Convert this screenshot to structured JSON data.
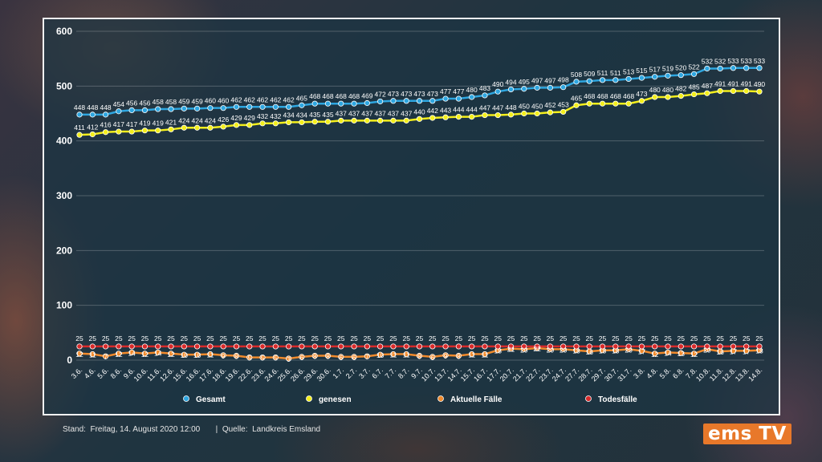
{
  "chart_data": {
    "type": "line",
    "ylim": [
      0,
      600
    ],
    "yticks": [
      0,
      100,
      200,
      300,
      400,
      500,
      600
    ],
    "grid": true,
    "legend_position": "bottom",
    "categories": [
      "3.6.",
      "4.6.",
      "5.6.",
      "8.6.",
      "9.6.",
      "10.6.",
      "11.6.",
      "12.6.",
      "15.6.",
      "16.6.",
      "17.6.",
      "18.6.",
      "19.6.",
      "22.6.",
      "23.6.",
      "24.6.",
      "25.6.",
      "26.6.",
      "29.6.",
      "30.6.",
      "1.7.",
      "2.7.",
      "3.7.",
      "6.7.",
      "7.7.",
      "8.7.",
      "9.7.",
      "10.7.",
      "13.7.",
      "14.7.",
      "15.7.",
      "16.7.",
      "17.7.",
      "20.7.",
      "21.7.",
      "22.7.",
      "23.7.",
      "24.7.",
      "27.7.",
      "28.7.",
      "29.7.",
      "30.7.",
      "31.7.",
      "3.8.",
      "4.8.",
      "5.8.",
      "6.8.",
      "7.8.",
      "10.8.",
      "11.8.",
      "12.8.",
      "13.8.",
      "14.8."
    ],
    "series": [
      {
        "name": "Gesamt",
        "color": "#2ea6e0",
        "values": [
          448,
          448,
          448,
          454,
          456,
          456,
          458,
          458,
          459,
          459,
          460,
          460,
          462,
          462,
          462,
          462,
          462,
          465,
          468,
          468,
          468,
          468,
          469,
          472,
          473,
          473,
          473,
          473,
          477,
          477,
          480,
          483,
          490,
          494,
          495,
          497,
          497,
          498,
          508,
          509,
          511,
          511,
          513,
          515,
          517,
          519,
          520,
          522,
          532,
          532,
          533,
          533,
          533
        ]
      },
      {
        "name": "genesen",
        "color": "#f4ef1c",
        "values": [
          411,
          412,
          416,
          417,
          417,
          419,
          419,
          421,
          424,
          424,
          424,
          426,
          429,
          429,
          432,
          432,
          434,
          434,
          435,
          435,
          437,
          437,
          437,
          437,
          437,
          437,
          440,
          442,
          443,
          444,
          444,
          447,
          447,
          448,
          450,
          450,
          452,
          453,
          465,
          468,
          468,
          468,
          468,
          473,
          480,
          480,
          482,
          485,
          487,
          491,
          491,
          491,
          490
        ]
      },
      {
        "name": "Aktuelle Fälle",
        "color": "#f08a2c",
        "values": [
          12,
          11,
          7,
          12,
          14,
          12,
          14,
          12,
          10,
          10,
          11,
          9,
          8,
          5,
          5,
          5,
          3,
          6,
          8,
          8,
          6,
          6,
          7,
          10,
          11,
          11,
          8,
          6,
          9,
          8,
          11,
          11,
          18,
          21,
          20,
          22,
          20,
          20,
          18,
          16,
          18,
          18,
          20,
          17,
          12,
          14,
          13,
          12,
          20,
          16,
          17,
          17,
          18
        ]
      },
      {
        "name": "Todesfälle",
        "color": "#d82a2a",
        "values": [
          25,
          25,
          25,
          25,
          25,
          25,
          25,
          25,
          25,
          25,
          25,
          25,
          25,
          25,
          25,
          25,
          25,
          25,
          25,
          25,
          25,
          25,
          25,
          25,
          25,
          25,
          25,
          25,
          25,
          25,
          25,
          25,
          25,
          25,
          25,
          25,
          25,
          25,
          25,
          25,
          25,
          25,
          25,
          25,
          25,
          25,
          25,
          25,
          25,
          25,
          25,
          25,
          25
        ]
      }
    ]
  },
  "footer": {
    "text": "Stand:  Freitag, 14. August 2020 12:00       |  Quelle:  Landkreis Emsland"
  },
  "logo": {
    "text": "ems TV"
  }
}
